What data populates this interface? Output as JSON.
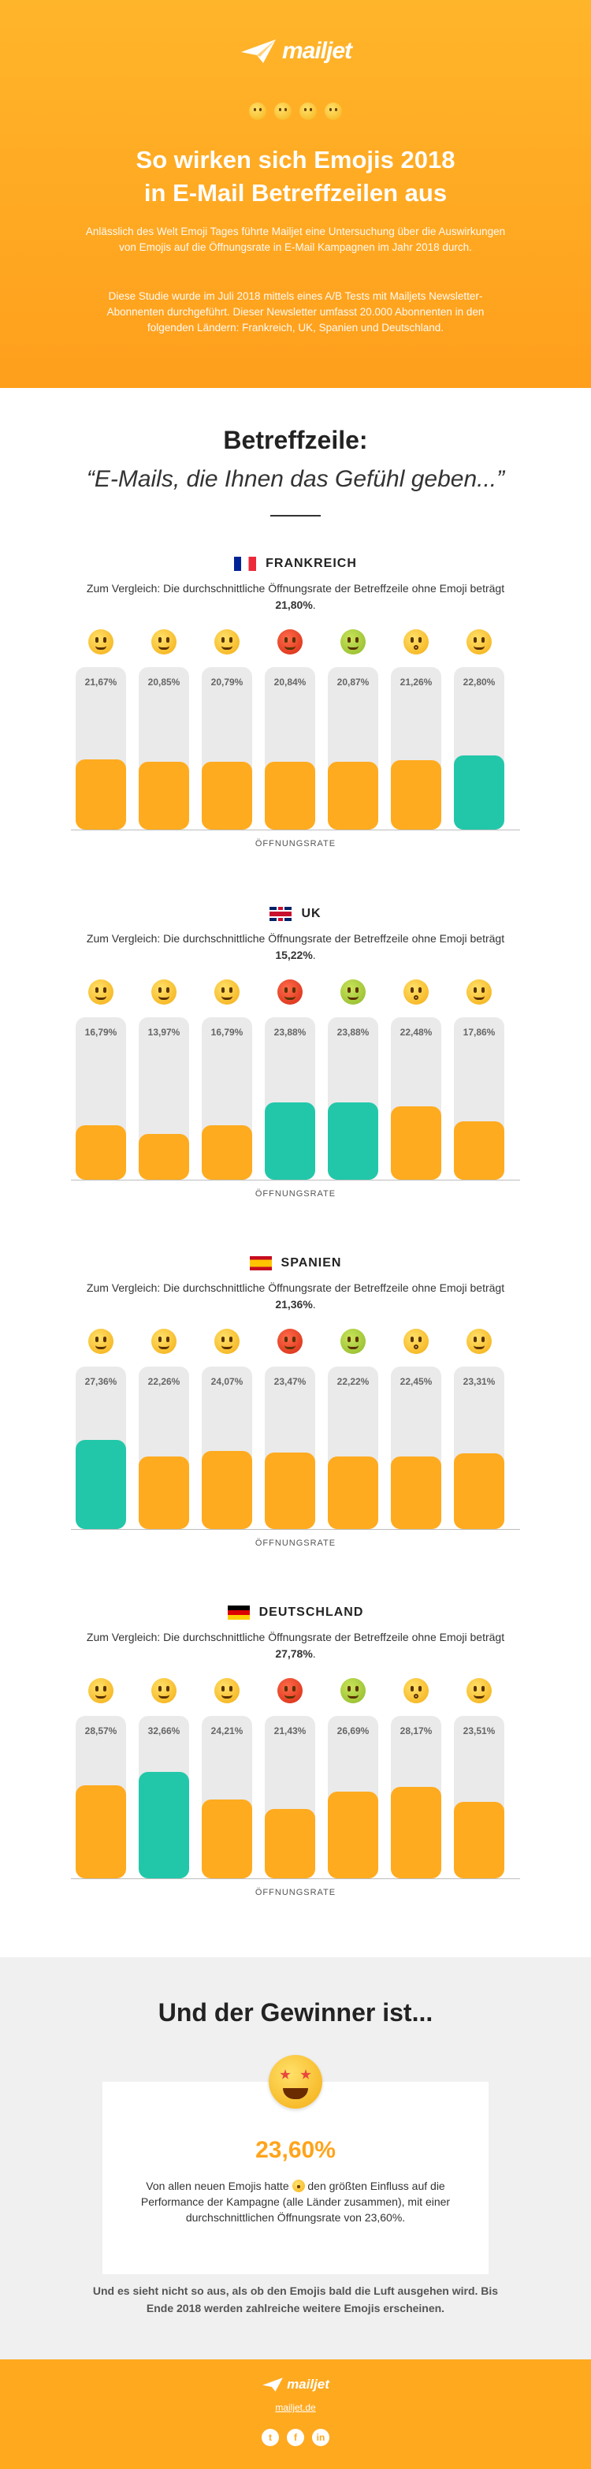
{
  "header": {
    "logo": "mailjet",
    "title_line1": "So wirken sich Emojis 2018",
    "title_line2": "in E-Mail Betreffzeilen aus",
    "intro": "Anlässlich des Welt Emoji Tages führte Mailjet eine Untersuchung über die Auswirkungen von Emojis auf die Öffnungsrate in E-Mail Kampagnen im Jahr 2018 durch.",
    "study": "Diese Studie wurde im Juli 2018 mittels eines A/B Tests mit Mailjets Newsletter-Abonnenten durchgeführt. Dieser Newsletter umfasst 20.000 Abonnenten in den folgenden Ländern: Frankreich, UK, Spanien und Deutschland."
  },
  "subject": {
    "heading": "Betreffzeile:",
    "quote": "“E-Mails, die Ihnen das Gefühl geben...”"
  },
  "compare_prefix": "Zum Vergleich: Die durchschnittliche Öffnungsrate der Betreffzeile ohne Emoji beträgt ",
  "axis_label": "ÖFFNUNGSRATE",
  "emoji_icons": [
    "star-struck-face-icon",
    "raised-eyebrow-face-icon",
    "exploding-head-face-icon",
    "cursing-face-icon",
    "vomiting-face-icon",
    "shushing-face-icon",
    "monocle-face-icon"
  ],
  "countries": [
    {
      "name": "FRANKREICH",
      "baseline": "21,80%",
      "values": [
        "21,67%",
        "20,85%",
        "20,79%",
        "20,84%",
        "20,87%",
        "21,26%",
        "22,80%"
      ],
      "numbers": [
        21.67,
        20.85,
        20.79,
        20.84,
        20.87,
        21.26,
        22.8
      ],
      "winner": [
        6
      ]
    },
    {
      "name": "UK",
      "baseline": "15,22%",
      "values": [
        "16,79%",
        "13,97%",
        "16,79%",
        "23,88%",
        "23,88%",
        "22,48%",
        "17,86%"
      ],
      "numbers": [
        16.79,
        13.97,
        16.79,
        23.88,
        23.88,
        22.48,
        17.86
      ],
      "winner": [
        3,
        4
      ]
    },
    {
      "name": "SPANIEN",
      "baseline": "21,36%",
      "values": [
        "27,36%",
        "22,26%",
        "24,07%",
        "23,47%",
        "22,22%",
        "22,45%",
        "23,31%"
      ],
      "numbers": [
        27.36,
        22.26,
        24.07,
        23.47,
        22.22,
        22.45,
        23.31
      ],
      "winner": [
        0
      ]
    },
    {
      "name": "DEUTSCHLAND",
      "baseline": "27,78%",
      "values": [
        "28,57%",
        "32,66%",
        "24,21%",
        "21,43%",
        "26,69%",
        "28,17%",
        "23,51%"
      ],
      "numbers": [
        28.57,
        32.66,
        24.21,
        21.43,
        26.69,
        28.17,
        23.51
      ],
      "winner": [
        1
      ]
    }
  ],
  "winner": {
    "heading": "Und der Gewinner ist...",
    "value": "23,60%",
    "text_before": "Von allen neuen Emojis hatte ",
    "text_after": " den größten Einfluss auf die Performance der Kampagne (alle Länder zusammen), mit einer durchschnittlichen Öffnungsrate von 23,60%.",
    "note": "Und es sieht nicht so aus, als ob den Emojis bald die Luft ausgehen wird. Bis Ende 2018 werden zahlreiche weitere Emojis erscheinen."
  },
  "footer": {
    "logo": "mailjet",
    "url": "mailjet.de",
    "social_twitter": "t",
    "social_facebook": "f",
    "social_linkedin": "in"
  },
  "colors": {
    "orange": "#ffab1f",
    "teal": "#22c7a9",
    "track": "#eaeaea"
  }
}
